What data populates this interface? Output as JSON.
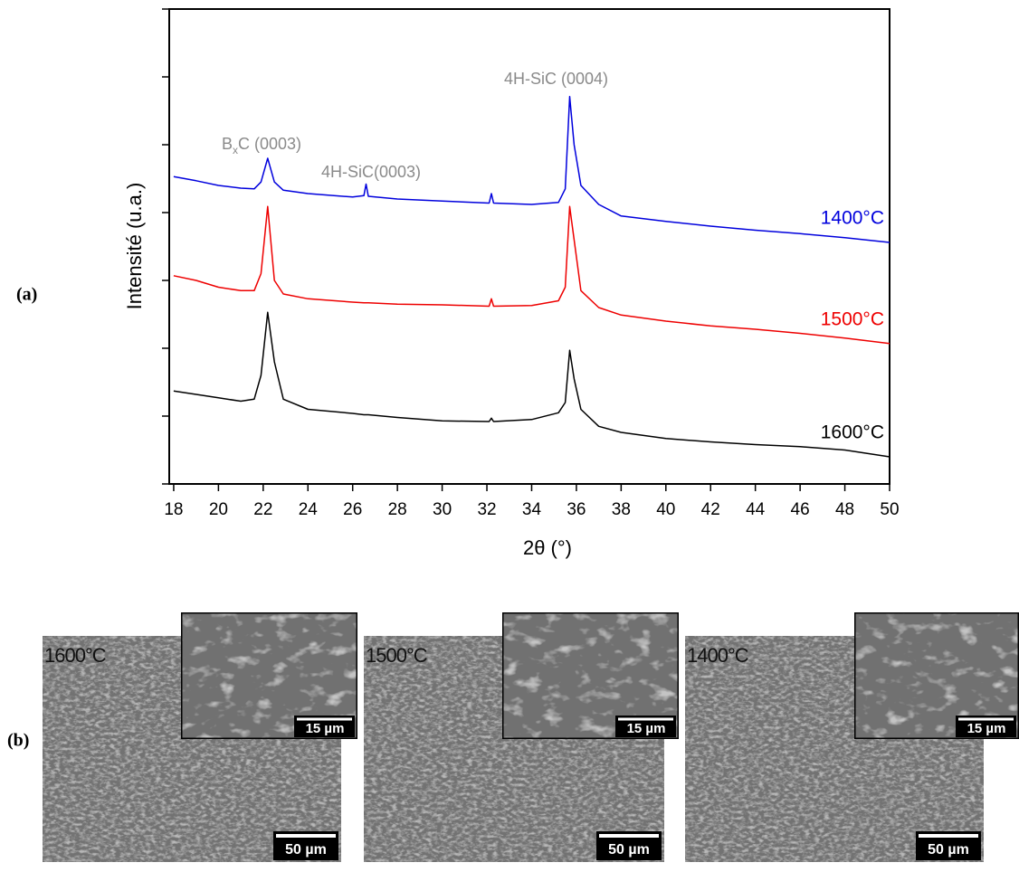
{
  "chart_data": {
    "type": "line",
    "x_label": "2θ (°)",
    "y_label": "Intensité (u.a.)",
    "x": [
      18,
      19,
      20,
      21,
      21.6,
      21.9,
      22.2,
      22.5,
      22.9,
      24,
      26,
      26.5,
      26.6,
      26.7,
      28,
      30,
      32.1,
      32.2,
      32.3,
      34,
      35.2,
      35.5,
      35.7,
      35.9,
      36.2,
      37,
      38,
      40,
      42,
      44,
      46,
      48,
      50
    ],
    "series": [
      {
        "name": "1400°C",
        "color": "#0000dd",
        "values": [
          4.53,
          4.47,
          4.4,
          4.36,
          4.35,
          4.45,
          4.8,
          4.45,
          4.33,
          4.28,
          4.23,
          4.25,
          4.42,
          4.24,
          4.2,
          4.17,
          4.14,
          4.28,
          4.14,
          4.12,
          4.15,
          4.35,
          5.71,
          5.0,
          4.4,
          4.12,
          3.95,
          3.87,
          3.8,
          3.74,
          3.69,
          3.63,
          3.56
        ]
      },
      {
        "name": "1500°C",
        "color": "#ee0000",
        "values": [
          3.07,
          3.0,
          2.9,
          2.85,
          2.85,
          3.1,
          4.09,
          3.0,
          2.8,
          2.73,
          2.68,
          2.67,
          2.67,
          2.67,
          2.65,
          2.64,
          2.62,
          2.73,
          2.62,
          2.63,
          2.7,
          2.9,
          4.09,
          3.6,
          2.85,
          2.6,
          2.49,
          2.4,
          2.33,
          2.28,
          2.22,
          2.15,
          2.07
        ]
      },
      {
        "name": "1600°C",
        "color": "#000000",
        "values": [
          1.37,
          1.32,
          1.27,
          1.22,
          1.25,
          1.6,
          2.53,
          1.8,
          1.25,
          1.1,
          1.04,
          1.02,
          1.02,
          1.02,
          0.98,
          0.93,
          0.92,
          0.97,
          0.92,
          0.95,
          1.05,
          1.2,
          1.97,
          1.55,
          1.1,
          0.85,
          0.76,
          0.67,
          0.62,
          0.58,
          0.55,
          0.5,
          0.4
        ]
      }
    ],
    "annotations": [
      {
        "parts": [
          "B",
          "x",
          "C (0003)"
        ]
      },
      {
        "parts": [
          "4H-SiC(0003)"
        ]
      },
      {
        "parts": [
          "4H-SiC (0004)"
        ]
      }
    ],
    "xlim": [
      17.8,
      50
    ],
    "xticks": [
      18,
      20,
      22,
      24,
      26,
      28,
      30,
      32,
      34,
      36,
      38,
      40,
      42,
      44,
      46,
      48,
      50
    ],
    "ylim": [
      0,
      7
    ],
    "yticks": [
      0,
      1,
      2,
      3,
      4,
      5,
      6,
      7
    ]
  },
  "panel_labels": [
    "(a)",
    "(b)"
  ],
  "sem_images": [
    {
      "label": "1600°C",
      "inset_scale": "15 µm",
      "scale": "50 µm"
    },
    {
      "label": "1500°C",
      "inset_scale": "15 µm",
      "scale": "50 µm"
    },
    {
      "label": "1400°C",
      "inset_scale": "15 µm",
      "scale": "50 µm"
    }
  ]
}
